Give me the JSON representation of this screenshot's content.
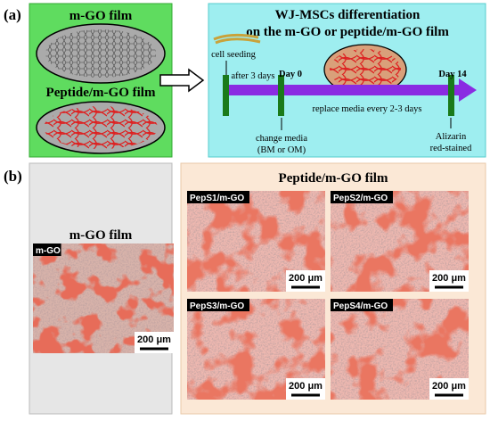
{
  "panel_a": {
    "label": "(a)",
    "films": {
      "top": "m-GO film",
      "bottom": "Peptide/m-GO film"
    },
    "protocol": {
      "title": [
        "WJ-MSCs differentiation",
        "on the m-GO or peptide/m-GO film"
      ],
      "cell_seeding": "cell seeding",
      "after": "after 3 days",
      "day0": "Day 0",
      "day14": "Day 14",
      "replace": "replace media every 2-3 days",
      "change": [
        "change media",
        "(BM or OM)"
      ],
      "stain": [
        "Alizarin",
        "red-stained"
      ]
    }
  },
  "panel_b": {
    "label": "(b)",
    "control": {
      "title": "m-GO film",
      "image": {
        "tag": "m-GO",
        "scale": "200 μm"
      }
    },
    "peptide": {
      "title": "Peptide/m-GO film",
      "images": [
        {
          "tag": "PepS1/m-GO",
          "scale": "200 μm"
        },
        {
          "tag": "PepS2/m-GO",
          "scale": "200 μm"
        },
        {
          "tag": "PepS3/m-GO",
          "scale": "200 μm"
        },
        {
          "tag": "PepS4/m-GO",
          "scale": "200 μm"
        }
      ]
    }
  }
}
